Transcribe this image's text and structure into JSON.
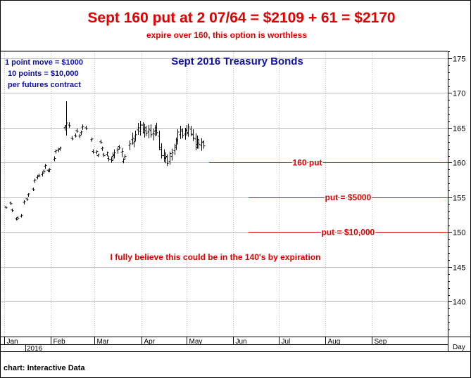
{
  "headline": "Sept 160 put at 2 07/64 = $2109 + 61 = $2170",
  "subheadline": "expire over 160, this option is worthless",
  "source_note": "chart: Interactive Data",
  "colors": {
    "headline": "#e00000",
    "annotation_red": "#e00000",
    "blue_text": "#1010a0",
    "bars": "#000000",
    "grid": "#bfbfbf"
  },
  "chart_data": {
    "type": "ohlc-bar",
    "title": "Sept 2016 Treasury Bonds",
    "notes": [
      "1 point move = $1000",
      "10 points = $10,000",
      "per futures contract"
    ],
    "y_axis": {
      "position": "right",
      "ylim": [
        135,
        176
      ],
      "ticks": [
        140,
        145,
        150,
        155,
        160,
        165,
        170,
        175
      ]
    },
    "x_axis": {
      "unit_label": "Day",
      "year_label": "2016",
      "months": [
        "Jan",
        "Feb",
        "Mar",
        "Apr",
        "May",
        "Jun",
        "Jul",
        "Aug",
        "Sep"
      ],
      "xlim_day": [
        0,
        292
      ],
      "month_start_day": [
        0,
        31,
        60,
        91,
        121,
        152,
        182,
        213,
        244
      ]
    },
    "grid": true,
    "bars": [
      {
        "day": 1,
        "o": 153.6,
        "h": 153.8,
        "l": 153.4,
        "c": 153.5
      },
      {
        "day": 4,
        "o": 154.2,
        "h": 154.4,
        "l": 153.9,
        "c": 154.1
      },
      {
        "day": 5,
        "o": 153.2,
        "h": 153.4,
        "l": 152.9,
        "c": 153.1
      },
      {
        "day": 8,
        "o": 151.9,
        "h": 152.1,
        "l": 151.7,
        "c": 151.8
      },
      {
        "day": 9,
        "o": 152.1,
        "h": 152.3,
        "l": 151.9,
        "c": 152.0
      },
      {
        "day": 11,
        "o": 152.3,
        "h": 152.6,
        "l": 152.1,
        "c": 152.4
      },
      {
        "day": 13,
        "o": 154.3,
        "h": 154.6,
        "l": 154.0,
        "c": 154.4
      },
      {
        "day": 15,
        "o": 154.8,
        "h": 155.0,
        "l": 154.5,
        "c": 154.7
      },
      {
        "day": 16,
        "o": 155.4,
        "h": 155.6,
        "l": 155.1,
        "c": 155.5
      },
      {
        "day": 19,
        "o": 156.2,
        "h": 156.4,
        "l": 155.9,
        "c": 156.1
      },
      {
        "day": 20,
        "o": 157.4,
        "h": 157.7,
        "l": 157.1,
        "c": 157.5
      },
      {
        "day": 22,
        "o": 157.9,
        "h": 158.2,
        "l": 157.6,
        "c": 158.0
      },
      {
        "day": 23,
        "o": 158.2,
        "h": 158.4,
        "l": 157.9,
        "c": 158.1
      },
      {
        "day": 25,
        "o": 158.3,
        "h": 158.7,
        "l": 158.0,
        "c": 158.5
      },
      {
        "day": 26,
        "o": 158.8,
        "h": 159.0,
        "l": 158.4,
        "c": 158.7
      },
      {
        "day": 27,
        "o": 159.5,
        "h": 159.8,
        "l": 159.1,
        "c": 159.6
      },
      {
        "day": 29,
        "o": 158.9,
        "h": 159.1,
        "l": 158.6,
        "c": 158.8
      },
      {
        "day": 30,
        "o": 158.8,
        "h": 159.2,
        "l": 158.6,
        "c": 159.0
      },
      {
        "day": 33,
        "o": 160.5,
        "h": 160.9,
        "l": 160.2,
        "c": 160.6
      },
      {
        "day": 34,
        "o": 161.6,
        "h": 161.9,
        "l": 161.3,
        "c": 161.7
      },
      {
        "day": 36,
        "o": 161.8,
        "h": 162.1,
        "l": 161.5,
        "c": 161.9
      },
      {
        "day": 37,
        "o": 162.0,
        "h": 162.3,
        "l": 161.7,
        "c": 162.1
      },
      {
        "day": 40,
        "o": 165.0,
        "h": 165.4,
        "l": 164.6,
        "c": 165.1
      },
      {
        "day": 41,
        "o": 165.3,
        "h": 168.8,
        "l": 163.9,
        "c": 165.7
      },
      {
        "day": 43,
        "o": 165.4,
        "h": 165.8,
        "l": 165.0,
        "c": 165.3
      },
      {
        "day": 45,
        "o": 163.5,
        "h": 163.8,
        "l": 163.2,
        "c": 163.4
      },
      {
        "day": 47,
        "o": 163.9,
        "h": 164.2,
        "l": 163.6,
        "c": 163.8
      },
      {
        "day": 48,
        "o": 164.6,
        "h": 164.9,
        "l": 164.3,
        "c": 164.5
      },
      {
        "day": 50,
        "o": 163.8,
        "h": 164.1,
        "l": 163.5,
        "c": 163.9
      },
      {
        "day": 51,
        "o": 164.3,
        "h": 164.6,
        "l": 164.0,
        "c": 164.4
      },
      {
        "day": 52,
        "o": 165.1,
        "h": 165.5,
        "l": 164.7,
        "c": 165.2
      },
      {
        "day": 54,
        "o": 165.0,
        "h": 165.3,
        "l": 164.7,
        "c": 164.9
      },
      {
        "day": 58,
        "o": 163.3,
        "h": 163.6,
        "l": 163.0,
        "c": 163.4
      },
      {
        "day": 59,
        "o": 161.6,
        "h": 161.9,
        "l": 161.3,
        "c": 161.5
      },
      {
        "day": 61,
        "o": 161.5,
        "h": 161.8,
        "l": 161.2,
        "c": 161.6
      },
      {
        "day": 62,
        "o": 161.0,
        "h": 161.3,
        "l": 160.8,
        "c": 161.1
      },
      {
        "day": 64,
        "o": 163.0,
        "h": 163.3,
        "l": 162.7,
        "c": 162.9
      },
      {
        "day": 65,
        "o": 162.0,
        "h": 162.3,
        "l": 161.7,
        "c": 162.1
      },
      {
        "day": 66,
        "o": 161.1,
        "h": 161.4,
        "l": 160.8,
        "c": 161.0
      },
      {
        "day": 68,
        "o": 161.2,
        "h": 161.6,
        "l": 160.9,
        "c": 161.4
      },
      {
        "day": 69,
        "o": 160.6,
        "h": 161.0,
        "l": 160.2,
        "c": 160.5
      },
      {
        "day": 71,
        "o": 160.4,
        "h": 160.8,
        "l": 160.0,
        "c": 160.3
      },
      {
        "day": 72,
        "o": 160.9,
        "h": 161.5,
        "l": 160.3,
        "c": 161.0
      },
      {
        "day": 73,
        "o": 161.2,
        "h": 161.9,
        "l": 160.6,
        "c": 161.4
      },
      {
        "day": 75,
        "o": 161.8,
        "h": 162.2,
        "l": 161.3,
        "c": 161.9
      },
      {
        "day": 76,
        "o": 162.3,
        "h": 162.5,
        "l": 161.9,
        "c": 162.1
      },
      {
        "day": 78,
        "o": 161.5,
        "h": 162.1,
        "l": 160.8,
        "c": 161.6
      },
      {
        "day": 79,
        "o": 160.2,
        "h": 160.6,
        "l": 159.9,
        "c": 160.4
      },
      {
        "day": 80,
        "o": 160.8,
        "h": 161.2,
        "l": 160.4,
        "c": 160.9
      },
      {
        "day": 83,
        "o": 162.5,
        "h": 163.2,
        "l": 161.8,
        "c": 162.7
      },
      {
        "day": 85,
        "o": 163.3,
        "h": 164.3,
        "l": 162.6,
        "c": 163.5
      },
      {
        "day": 86,
        "o": 162.8,
        "h": 163.6,
        "l": 162.2,
        "c": 163.0
      },
      {
        "day": 87,
        "o": 163.8,
        "h": 164.6,
        "l": 163.1,
        "c": 164.0
      },
      {
        "day": 89,
        "o": 164.7,
        "h": 165.7,
        "l": 164.0,
        "c": 165.0
      },
      {
        "day": 90,
        "o": 164.5,
        "h": 166.0,
        "l": 163.9,
        "c": 165.4
      },
      {
        "day": 92,
        "o": 165.4,
        "h": 165.8,
        "l": 164.2,
        "c": 164.8
      },
      {
        "day": 93,
        "o": 164.3,
        "h": 165.6,
        "l": 163.6,
        "c": 165.0
      },
      {
        "day": 94,
        "o": 164.6,
        "h": 165.3,
        "l": 163.8,
        "c": 164.2
      },
      {
        "day": 96,
        "o": 164.4,
        "h": 165.4,
        "l": 163.5,
        "c": 164.8
      },
      {
        "day": 97,
        "o": 164.6,
        "h": 165.5,
        "l": 163.6,
        "c": 164.0
      },
      {
        "day": 99,
        "o": 164.2,
        "h": 164.9,
        "l": 163.2,
        "c": 164.1
      },
      {
        "day": 100,
        "o": 164.5,
        "h": 165.4,
        "l": 163.8,
        "c": 165.0
      },
      {
        "day": 101,
        "o": 164.6,
        "h": 165.7,
        "l": 163.9,
        "c": 164.3
      },
      {
        "day": 103,
        "o": 163.8,
        "h": 164.6,
        "l": 161.8,
        "c": 162.2
      },
      {
        "day": 104,
        "o": 161.9,
        "h": 162.8,
        "l": 160.6,
        "c": 161.0
      },
      {
        "day": 106,
        "o": 161.0,
        "h": 161.9,
        "l": 160.1,
        "c": 160.6
      },
      {
        "day": 107,
        "o": 160.7,
        "h": 161.5,
        "l": 159.9,
        "c": 160.9
      },
      {
        "day": 108,
        "o": 160.8,
        "h": 161.2,
        "l": 159.5,
        "c": 159.9
      },
      {
        "day": 110,
        "o": 160.2,
        "h": 161.6,
        "l": 159.7,
        "c": 161.3
      },
      {
        "day": 111,
        "o": 160.9,
        "h": 162.0,
        "l": 160.3,
        "c": 161.4
      },
      {
        "day": 113,
        "o": 161.7,
        "h": 162.7,
        "l": 161.1,
        "c": 162.4
      },
      {
        "day": 114,
        "o": 162.2,
        "h": 163.6,
        "l": 161.8,
        "c": 163.3
      },
      {
        "day": 115,
        "o": 163.1,
        "h": 164.8,
        "l": 162.6,
        "c": 164.4
      },
      {
        "day": 117,
        "o": 164.0,
        "h": 165.3,
        "l": 163.4,
        "c": 164.7
      },
      {
        "day": 118,
        "o": 164.5,
        "h": 164.9,
        "l": 163.5,
        "c": 163.9
      },
      {
        "day": 120,
        "o": 164.1,
        "h": 165.0,
        "l": 163.3,
        "c": 164.6
      },
      {
        "day": 121,
        "o": 164.7,
        "h": 165.4,
        "l": 163.9,
        "c": 164.3
      },
      {
        "day": 122,
        "o": 164.2,
        "h": 165.6,
        "l": 163.7,
        "c": 165.1
      },
      {
        "day": 124,
        "o": 164.8,
        "h": 165.3,
        "l": 163.8,
        "c": 164.1
      },
      {
        "day": 125,
        "o": 164.0,
        "h": 164.8,
        "l": 163.1,
        "c": 163.5
      },
      {
        "day": 127,
        "o": 163.4,
        "h": 164.2,
        "l": 161.8,
        "c": 162.2
      },
      {
        "day": 128,
        "o": 162.6,
        "h": 163.9,
        "l": 162.0,
        "c": 163.3
      },
      {
        "day": 129,
        "o": 162.8,
        "h": 163.4,
        "l": 162.0,
        "c": 162.6
      },
      {
        "day": 131,
        "o": 162.5,
        "h": 163.5,
        "l": 161.7,
        "c": 162.9
      },
      {
        "day": 132,
        "o": 163.0,
        "h": 163.2,
        "l": 162.0,
        "c": 162.4
      }
    ],
    "annotations": [
      {
        "text": "160 put",
        "y": 160,
        "x_start_day": 136
      },
      {
        "text": "put = $5000",
        "y": 155,
        "x_start_day": 162
      },
      {
        "text": "put = $10,000",
        "y": 150,
        "x_start_day": 162
      },
      {
        "text": "I fully believe this could be in the 140's by expiration",
        "y": 146.4
      }
    ]
  }
}
